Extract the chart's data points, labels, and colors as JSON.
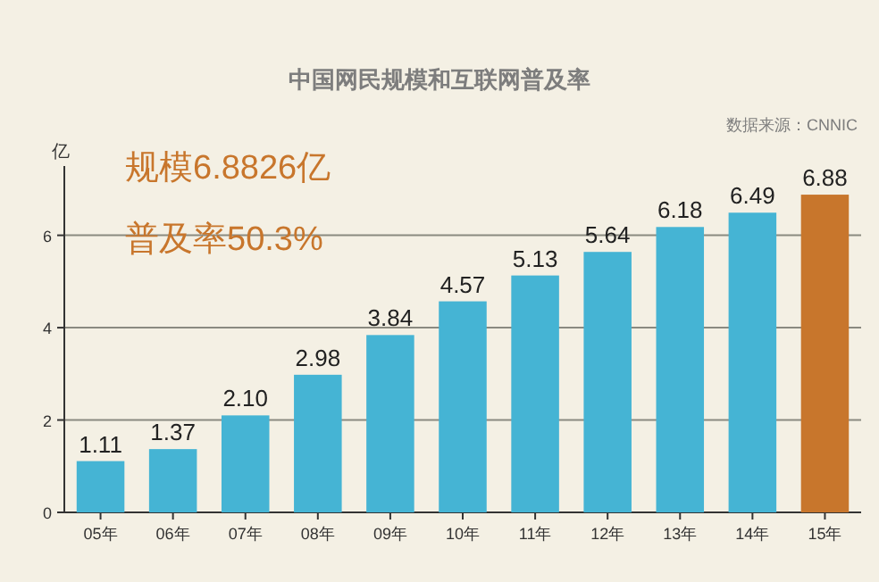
{
  "chart_data": {
    "type": "bar",
    "title": "中国网民规模和互联网普及率",
    "ylabel": "亿",
    "categories": [
      "05年",
      "06年",
      "07年",
      "08年",
      "09年",
      "10年",
      "11年",
      "12年",
      "13年",
      "14年",
      "15年"
    ],
    "values": [
      1.11,
      1.37,
      2.1,
      2.98,
      3.84,
      4.57,
      5.13,
      5.64,
      6.18,
      6.49,
      6.88
    ],
    "value_labels": [
      "1.11",
      "1.37",
      "2.10",
      "2.98",
      "3.84",
      "4.57",
      "5.13",
      "5.64",
      "6.18",
      "6.49",
      "6.88"
    ],
    "colors": [
      "#45b4d4",
      "#45b4d4",
      "#45b4d4",
      "#45b4d4",
      "#45b4d4",
      "#45b4d4",
      "#45b4d4",
      "#45b4d4",
      "#45b4d4",
      "#45b4d4",
      "#c8762c"
    ],
    "ylim": [
      0,
      7.5
    ],
    "yticks": [
      0,
      2,
      4,
      6
    ],
    "grid": "y",
    "annotations": [
      "数据来源：CNNIC",
      "规模6.8826亿",
      "普及率50.3%"
    ]
  }
}
